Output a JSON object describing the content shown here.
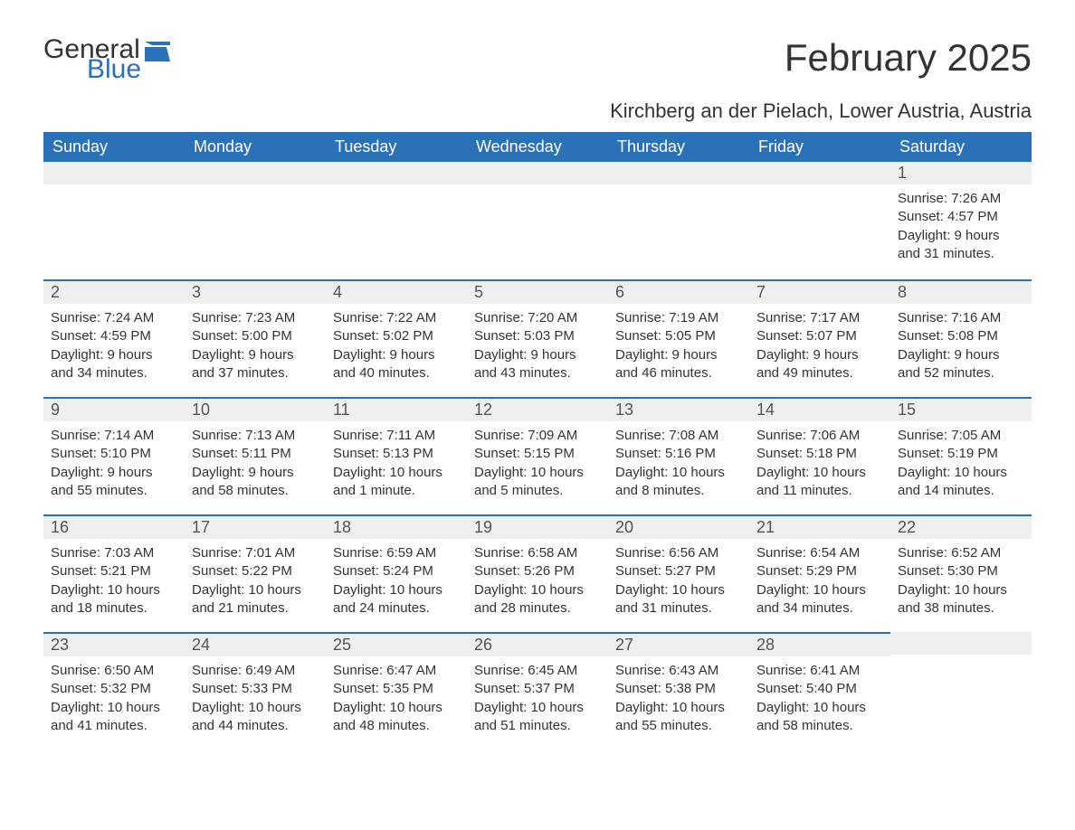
{
  "logo": {
    "text1": "General",
    "text2": "Blue"
  },
  "title": "February 2025",
  "location": "Kirchberg an der Pielach, Lower Austria, Austria",
  "colors": {
    "header_bg": "#2b71b8",
    "header_text": "#ffffff",
    "daynum_bg": "#efefef",
    "border_top": "#2b71b8",
    "body_text": "#333333"
  },
  "weekdays": [
    "Sunday",
    "Monday",
    "Tuesday",
    "Wednesday",
    "Thursday",
    "Friday",
    "Saturday"
  ],
  "weeks": [
    [
      null,
      null,
      null,
      null,
      null,
      null,
      {
        "n": "1",
        "sr": "Sunrise: 7:26 AM",
        "ss": "Sunset: 4:57 PM",
        "dl": "Daylight: 9 hours and 31 minutes."
      }
    ],
    [
      {
        "n": "2",
        "sr": "Sunrise: 7:24 AM",
        "ss": "Sunset: 4:59 PM",
        "dl": "Daylight: 9 hours and 34 minutes."
      },
      {
        "n": "3",
        "sr": "Sunrise: 7:23 AM",
        "ss": "Sunset: 5:00 PM",
        "dl": "Daylight: 9 hours and 37 minutes."
      },
      {
        "n": "4",
        "sr": "Sunrise: 7:22 AM",
        "ss": "Sunset: 5:02 PM",
        "dl": "Daylight: 9 hours and 40 minutes."
      },
      {
        "n": "5",
        "sr": "Sunrise: 7:20 AM",
        "ss": "Sunset: 5:03 PM",
        "dl": "Daylight: 9 hours and 43 minutes."
      },
      {
        "n": "6",
        "sr": "Sunrise: 7:19 AM",
        "ss": "Sunset: 5:05 PM",
        "dl": "Daylight: 9 hours and 46 minutes."
      },
      {
        "n": "7",
        "sr": "Sunrise: 7:17 AM",
        "ss": "Sunset: 5:07 PM",
        "dl": "Daylight: 9 hours and 49 minutes."
      },
      {
        "n": "8",
        "sr": "Sunrise: 7:16 AM",
        "ss": "Sunset: 5:08 PM",
        "dl": "Daylight: 9 hours and 52 minutes."
      }
    ],
    [
      {
        "n": "9",
        "sr": "Sunrise: 7:14 AM",
        "ss": "Sunset: 5:10 PM",
        "dl": "Daylight: 9 hours and 55 minutes."
      },
      {
        "n": "10",
        "sr": "Sunrise: 7:13 AM",
        "ss": "Sunset: 5:11 PM",
        "dl": "Daylight: 9 hours and 58 minutes."
      },
      {
        "n": "11",
        "sr": "Sunrise: 7:11 AM",
        "ss": "Sunset: 5:13 PM",
        "dl": "Daylight: 10 hours and 1 minute."
      },
      {
        "n": "12",
        "sr": "Sunrise: 7:09 AM",
        "ss": "Sunset: 5:15 PM",
        "dl": "Daylight: 10 hours and 5 minutes."
      },
      {
        "n": "13",
        "sr": "Sunrise: 7:08 AM",
        "ss": "Sunset: 5:16 PM",
        "dl": "Daylight: 10 hours and 8 minutes."
      },
      {
        "n": "14",
        "sr": "Sunrise: 7:06 AM",
        "ss": "Sunset: 5:18 PM",
        "dl": "Daylight: 10 hours and 11 minutes."
      },
      {
        "n": "15",
        "sr": "Sunrise: 7:05 AM",
        "ss": "Sunset: 5:19 PM",
        "dl": "Daylight: 10 hours and 14 minutes."
      }
    ],
    [
      {
        "n": "16",
        "sr": "Sunrise: 7:03 AM",
        "ss": "Sunset: 5:21 PM",
        "dl": "Daylight: 10 hours and 18 minutes."
      },
      {
        "n": "17",
        "sr": "Sunrise: 7:01 AM",
        "ss": "Sunset: 5:22 PM",
        "dl": "Daylight: 10 hours and 21 minutes."
      },
      {
        "n": "18",
        "sr": "Sunrise: 6:59 AM",
        "ss": "Sunset: 5:24 PM",
        "dl": "Daylight: 10 hours and 24 minutes."
      },
      {
        "n": "19",
        "sr": "Sunrise: 6:58 AM",
        "ss": "Sunset: 5:26 PM",
        "dl": "Daylight: 10 hours and 28 minutes."
      },
      {
        "n": "20",
        "sr": "Sunrise: 6:56 AM",
        "ss": "Sunset: 5:27 PM",
        "dl": "Daylight: 10 hours and 31 minutes."
      },
      {
        "n": "21",
        "sr": "Sunrise: 6:54 AM",
        "ss": "Sunset: 5:29 PM",
        "dl": "Daylight: 10 hours and 34 minutes."
      },
      {
        "n": "22",
        "sr": "Sunrise: 6:52 AM",
        "ss": "Sunset: 5:30 PM",
        "dl": "Daylight: 10 hours and 38 minutes."
      }
    ],
    [
      {
        "n": "23",
        "sr": "Sunrise: 6:50 AM",
        "ss": "Sunset: 5:32 PM",
        "dl": "Daylight: 10 hours and 41 minutes."
      },
      {
        "n": "24",
        "sr": "Sunrise: 6:49 AM",
        "ss": "Sunset: 5:33 PM",
        "dl": "Daylight: 10 hours and 44 minutes."
      },
      {
        "n": "25",
        "sr": "Sunrise: 6:47 AM",
        "ss": "Sunset: 5:35 PM",
        "dl": "Daylight: 10 hours and 48 minutes."
      },
      {
        "n": "26",
        "sr": "Sunrise: 6:45 AM",
        "ss": "Sunset: 5:37 PM",
        "dl": "Daylight: 10 hours and 51 minutes."
      },
      {
        "n": "27",
        "sr": "Sunrise: 6:43 AM",
        "ss": "Sunset: 5:38 PM",
        "dl": "Daylight: 10 hours and 55 minutes."
      },
      {
        "n": "28",
        "sr": "Sunrise: 6:41 AM",
        "ss": "Sunset: 5:40 PM",
        "dl": "Daylight: 10 hours and 58 minutes."
      },
      null
    ]
  ]
}
